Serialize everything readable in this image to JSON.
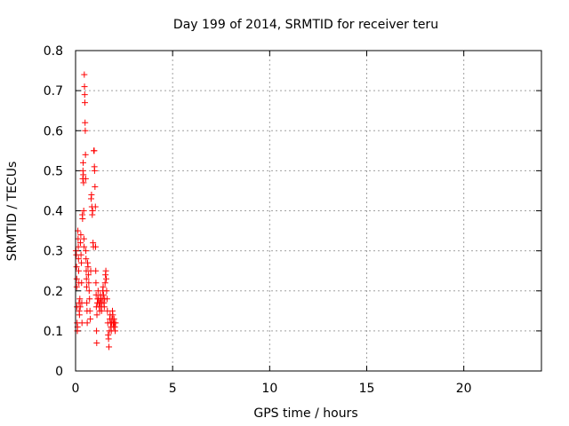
{
  "chart_data": {
    "type": "scatter",
    "title": "Day 199 of 2014, SRMTID for receiver teru",
    "xlabel": "GPS time / hours",
    "ylabel": "SRMTID / TECUs",
    "xlim": [
      0,
      24
    ],
    "ylim": [
      0,
      0.8
    ],
    "xticks": [
      0,
      5,
      10,
      15,
      20
    ],
    "xtick_labels": [
      "0",
      "5",
      "10",
      "15",
      "20"
    ],
    "yticks": [
      0,
      0.1,
      0.2,
      0.3,
      0.4,
      0.5,
      0.6,
      0.7,
      0.8
    ],
    "ytick_labels": [
      "0",
      "0.1",
      "0.2",
      "0.3",
      "0.4",
      "0.5",
      "0.6",
      "0.7",
      "0.8"
    ],
    "grid": true,
    "marker": "plus",
    "color": "#ff0000",
    "series": [
      {
        "name": "SRMTID",
        "points": [
          [
            0.02,
            0.3
          ],
          [
            0.04,
            0.29
          ],
          [
            0.05,
            0.26
          ],
          [
            0.06,
            0.23
          ],
          [
            0.06,
            0.21
          ],
          [
            0.07,
            0.16
          ],
          [
            0.08,
            0.12
          ],
          [
            0.09,
            0.1
          ],
          [
            0.1,
            0.11
          ],
          [
            0.12,
            0.35
          ],
          [
            0.13,
            0.33
          ],
          [
            0.14,
            0.31
          ],
          [
            0.15,
            0.28
          ],
          [
            0.16,
            0.25
          ],
          [
            0.17,
            0.22
          ],
          [
            0.18,
            0.17
          ],
          [
            0.19,
            0.15
          ],
          [
            0.2,
            0.14
          ],
          [
            0.22,
            0.18
          ],
          [
            0.24,
            0.16
          ],
          [
            0.25,
            0.32
          ],
          [
            0.27,
            0.34
          ],
          [
            0.28,
            0.29
          ],
          [
            0.3,
            0.27
          ],
          [
            0.31,
            0.22
          ],
          [
            0.32,
            0.17
          ],
          [
            0.33,
            0.12
          ],
          [
            0.35,
            0.39
          ],
          [
            0.36,
            0.38
          ],
          [
            0.37,
            0.48
          ],
          [
            0.38,
            0.5
          ],
          [
            0.39,
            0.52
          ],
          [
            0.4,
            0.49
          ],
          [
            0.41,
            0.47
          ],
          [
            0.42,
            0.4
          ],
          [
            0.43,
            0.33
          ],
          [
            0.44,
            0.31
          ],
          [
            0.45,
            0.74
          ],
          [
            0.46,
            0.71
          ],
          [
            0.47,
            0.69
          ],
          [
            0.48,
            0.67
          ],
          [
            0.49,
            0.62
          ],
          [
            0.5,
            0.6
          ],
          [
            0.51,
            0.54
          ],
          [
            0.52,
            0.48
          ],
          [
            0.53,
            0.3
          ],
          [
            0.54,
            0.28
          ],
          [
            0.55,
            0.25
          ],
          [
            0.56,
            0.23
          ],
          [
            0.57,
            0.21
          ],
          [
            0.58,
            0.17
          ],
          [
            0.59,
            0.15
          ],
          [
            0.6,
            0.12
          ],
          [
            0.62,
            0.27
          ],
          [
            0.64,
            0.26
          ],
          [
            0.66,
            0.24
          ],
          [
            0.68,
            0.22
          ],
          [
            0.7,
            0.2
          ],
          [
            0.72,
            0.18
          ],
          [
            0.74,
            0.15
          ],
          [
            0.76,
            0.13
          ],
          [
            0.78,
            0.25
          ],
          [
            0.8,
            0.43
          ],
          [
            0.82,
            0.44
          ],
          [
            0.84,
            0.41
          ],
          [
            0.86,
            0.39
          ],
          [
            0.88,
            0.4
          ],
          [
            0.9,
            0.32
          ],
          [
            0.92,
            0.31
          ],
          [
            0.94,
            0.55
          ],
          [
            0.96,
            0.55
          ],
          [
            0.97,
            0.51
          ],
          [
            0.98,
            0.5
          ],
          [
            1.0,
            0.46
          ],
          [
            1.02,
            0.41
          ],
          [
            1.03,
            0.31
          ],
          [
            1.04,
            0.25
          ],
          [
            1.05,
            0.22
          ],
          [
            1.06,
            0.19
          ],
          [
            1.07,
            0.16
          ],
          [
            1.08,
            0.1
          ],
          [
            1.09,
            0.07
          ],
          [
            1.1,
            0.14
          ],
          [
            1.12,
            0.17
          ],
          [
            1.14,
            0.18
          ],
          [
            1.16,
            0.2
          ],
          [
            1.18,
            0.18
          ],
          [
            1.2,
            0.17
          ],
          [
            1.22,
            0.16
          ],
          [
            1.24,
            0.15
          ],
          [
            1.26,
            0.17
          ],
          [
            1.28,
            0.19
          ],
          [
            1.3,
            0.18
          ],
          [
            1.32,
            0.16
          ],
          [
            1.34,
            0.15
          ],
          [
            1.36,
            0.17
          ],
          [
            1.38,
            0.18
          ],
          [
            1.4,
            0.2
          ],
          [
            1.42,
            0.21
          ],
          [
            1.44,
            0.19
          ],
          [
            1.46,
            0.17
          ],
          [
            1.48,
            0.16
          ],
          [
            1.5,
            0.18
          ],
          [
            1.52,
            0.22
          ],
          [
            1.54,
            0.24
          ],
          [
            1.56,
            0.25
          ],
          [
            1.58,
            0.23
          ],
          [
            1.6,
            0.2
          ],
          [
            1.62,
            0.18
          ],
          [
            1.64,
            0.15
          ],
          [
            1.66,
            0.12
          ],
          [
            1.68,
            0.09
          ],
          [
            1.7,
            0.08
          ],
          [
            1.72,
            0.06
          ],
          [
            1.74,
            0.1
          ],
          [
            1.76,
            0.13
          ],
          [
            1.78,
            0.14
          ],
          [
            1.8,
            0.12
          ],
          [
            1.82,
            0.11
          ],
          [
            1.84,
            0.1
          ],
          [
            1.86,
            0.12
          ],
          [
            1.88,
            0.13
          ],
          [
            1.9,
            0.15
          ],
          [
            1.92,
            0.14
          ],
          [
            1.94,
            0.12
          ],
          [
            1.96,
            0.11
          ],
          [
            1.98,
            0.13
          ],
          [
            2.0,
            0.12
          ],
          [
            2.02,
            0.11
          ],
          [
            2.04,
            0.1
          ],
          [
            2.06,
            0.12
          ]
        ]
      }
    ]
  }
}
